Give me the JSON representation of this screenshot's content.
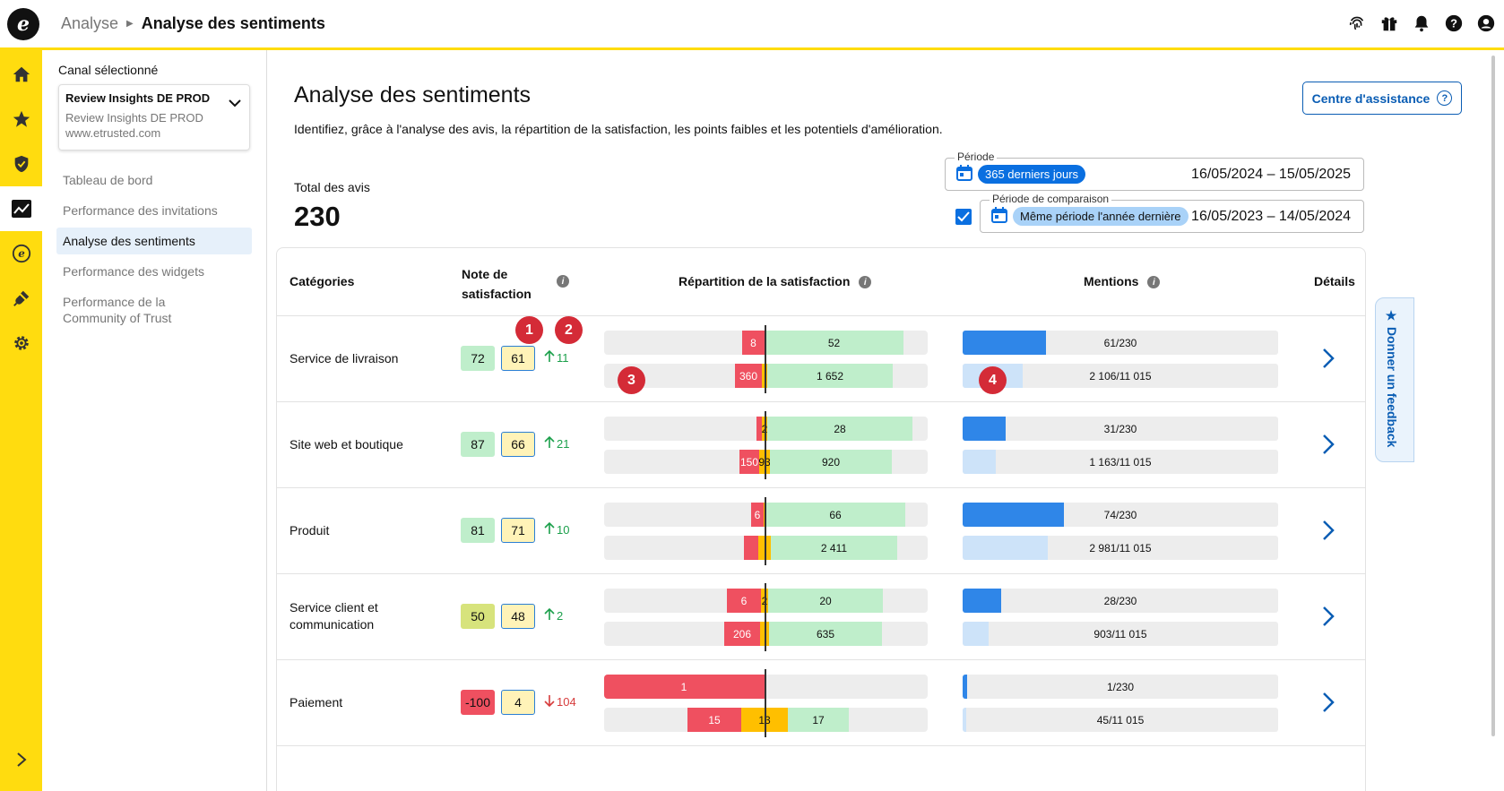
{
  "brand": {
    "logo_glyph": "e",
    "accent": "#ffdc0f",
    "primary": "#0a6fe0"
  },
  "breadcrumb": {
    "parent": "Analyse",
    "current": "Analyse des sentiments"
  },
  "top_icons": [
    "fingerprint-icon",
    "gift-icon",
    "bell-icon",
    "help-icon",
    "account-icon"
  ],
  "rail": [
    "home-icon",
    "star-icon",
    "shield-icon",
    "chart-icon",
    "etrusted-icon",
    "plug-icon",
    "gear-icon"
  ],
  "sidebar": {
    "label": "Canal sélectionné",
    "channel": {
      "name": "Review Insights DE PROD",
      "sub": "Review Insights DE PROD",
      "url": "www.etrusted.com"
    },
    "items": [
      {
        "label": "Tableau de bord",
        "active": false
      },
      {
        "label": "Performance des invitations",
        "active": false
      },
      {
        "label": "Analyse des sentiments",
        "active": true
      },
      {
        "label": "Performance des widgets",
        "active": false
      },
      {
        "label": "Performance de la Community of Trust",
        "active": false
      }
    ]
  },
  "page": {
    "title": "Analyse des sentiments",
    "description": "Identifiez, grâce à l'analyse des avis, la répartition de la satisfaction, les points faibles et les potentiels d'amélioration.",
    "help_button": "Centre d'assistance",
    "total_label": "Total des avis",
    "total_value": "230"
  },
  "period": {
    "label": "Période",
    "chip": "365 derniers jours",
    "dates": "16/05/2024 – 15/05/2025",
    "compare_label": "Période de comparaison",
    "compare_chip": "Même période l'année dernière",
    "compare_dates": "16/05/2023 – 14/05/2024",
    "compare_checked": true
  },
  "table": {
    "headers": {
      "categories": "Catégories",
      "score_line1": "Note de",
      "score_line2": "satisfaction",
      "distribution": "Répartition de la satisfaction",
      "mentions": "Mentions",
      "details": "Détails"
    },
    "rows": [
      {
        "category": "Service de livraison",
        "score": "72",
        "score_color": "#bfeecb",
        "compare": "61",
        "delta": "11",
        "dir": "up",
        "cur": {
          "neg": "8",
          "neu": "",
          "pos": "52",
          "negw": 25,
          "neuw": 0,
          "posw": 155
        },
        "cmp": {
          "neg": "360",
          "neu": "",
          "pos": "1 652",
          "negw": 30,
          "neuw": 6,
          "posw": 140
        },
        "mentions_cur": "61/230",
        "mentions_cur_frac": 0.265,
        "mentions_cmp": "2 106/11 015",
        "mentions_cmp_frac": 0.191
      },
      {
        "category": "Site web et boutique",
        "score": "87",
        "score_color": "#bfeecb",
        "compare": "66",
        "delta": "21",
        "dir": "up",
        "cur": {
          "neg": "",
          "neu": "2",
          "pos": "28",
          "negw": 6,
          "neuw": 6,
          "posw": 162
        },
        "cmp": {
          "neg": "150",
          "neu": "93",
          "pos": "920",
          "negw": 22,
          "neuw": 12,
          "posw": 136
        },
        "mentions_cur": "31/230",
        "mentions_cur_frac": 0.135,
        "mentions_cmp": "1 163/11 015",
        "mentions_cmp_frac": 0.106
      },
      {
        "category": "Produit",
        "score": "81",
        "score_color": "#bfeecb",
        "compare": "71",
        "delta": "10",
        "dir": "up",
        "cur": {
          "neg": "6",
          "neu": "",
          "pos": "66",
          "negw": 14,
          "neuw": 2,
          "posw": 156
        },
        "cmp": {
          "neg": "",
          "neu": "",
          "pos": "2 411",
          "negw": 16,
          "neuw": 14,
          "posw": 141
        },
        "mentions_cur": "74/230",
        "mentions_cur_frac": 0.322,
        "mentions_cmp": "2 981/11 015",
        "mentions_cmp_frac": 0.271
      },
      {
        "category": "Service client et communication",
        "score": "50",
        "score_color": "#d7e37c",
        "compare": "48",
        "delta": "2",
        "dir": "up",
        "cur": {
          "neg": "6",
          "neu": "2",
          "pos": "20",
          "negw": 38,
          "neuw": 8,
          "posw": 128
        },
        "cmp": {
          "neg": "206",
          "neu": "",
          "pos": "635",
          "negw": 40,
          "neuw": 10,
          "posw": 126
        },
        "mentions_cur": "28/230",
        "mentions_cur_frac": 0.122,
        "mentions_cmp": "903/11 015",
        "mentions_cmp_frac": 0.082
      },
      {
        "category": "Paiement",
        "score": "-100",
        "score_color": "#ef5060",
        "compare": "4",
        "delta": "104",
        "dir": "down",
        "cur": {
          "neg": "1",
          "neu": "",
          "pos": "",
          "negw": 180,
          "neuw": 0,
          "posw": 0
        },
        "cmp": {
          "neg": "15",
          "neu": "13",
          "pos": "17",
          "negw": 60,
          "neuw": 52,
          "posw": 68
        },
        "mentions_cur": "1/230",
        "mentions_cur_frac": 0.013,
        "mentions_cmp": "45/11 015",
        "mentions_cmp_frac": 0.008
      }
    ]
  },
  "markers": [
    "1",
    "2",
    "3",
    "4"
  ],
  "feedback": "Donner un feedback"
}
